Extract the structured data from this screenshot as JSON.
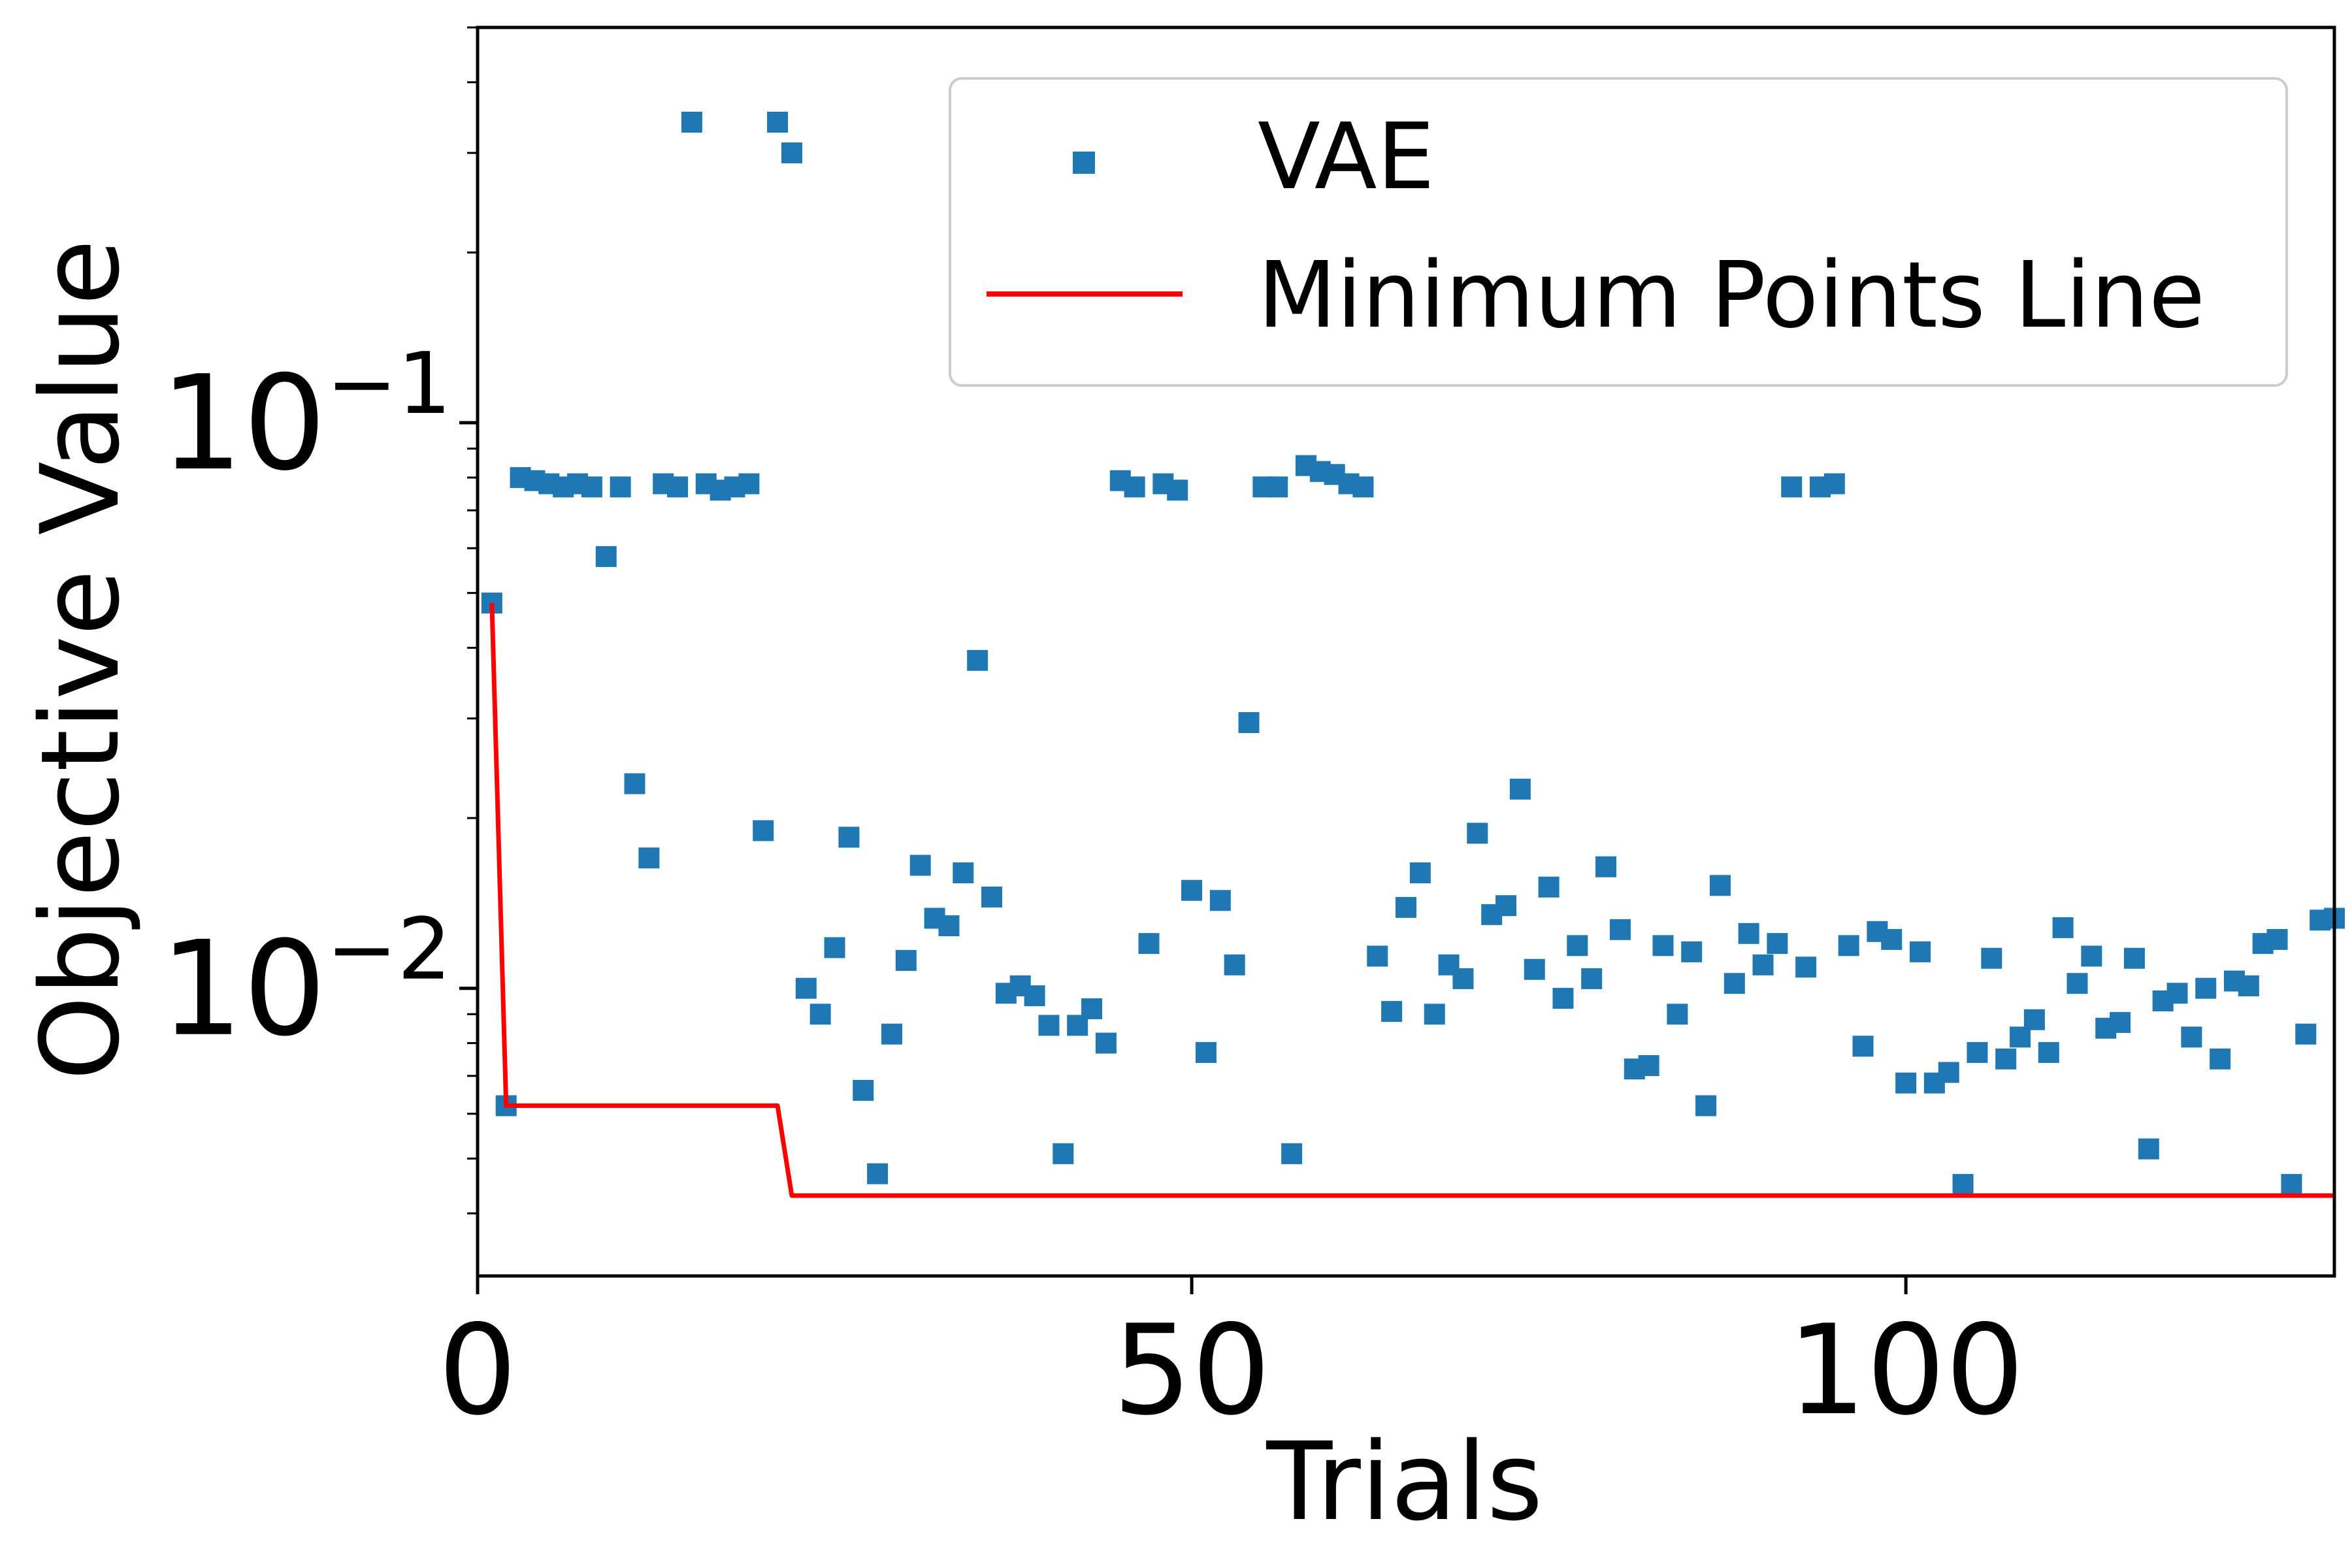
{
  "chart_data": {
    "type": "scatter",
    "xlabel": "Trials",
    "ylabel": "Objective Value",
    "xlim": [
      0,
      130
    ],
    "ylim": [
      0.0031,
      0.5
    ],
    "yscale": "log",
    "x_ticks": [
      0,
      50,
      100
    ],
    "x_tick_labels": [
      "0",
      "50",
      "100"
    ],
    "y_major_ticks": [
      0.01,
      0.1
    ],
    "y_tick_labels": [
      {
        "base": "10",
        "exp": "−2"
      },
      {
        "base": "10",
        "exp": "−1"
      }
    ],
    "legend": {
      "position": "top-right"
    },
    "series": [
      {
        "name": "VAE",
        "kind": "scatter",
        "marker": "square",
        "color": "#1f77b4",
        "x": [
          1,
          2,
          3,
          4,
          5,
          6,
          7,
          8,
          9,
          10,
          11,
          12,
          13,
          14,
          15,
          16,
          17,
          18,
          19,
          20,
          21,
          22,
          23,
          24,
          25,
          26,
          27,
          28,
          29,
          30,
          31,
          32,
          33,
          34,
          35,
          36,
          37,
          38,
          39,
          40,
          41,
          42,
          43,
          44,
          45,
          46,
          47,
          48,
          49,
          50,
          51,
          52,
          53,
          54,
          55,
          56,
          57,
          58,
          59,
          60,
          61,
          62,
          63,
          64,
          65,
          66,
          67,
          68,
          69,
          70,
          71,
          72,
          73,
          74,
          75,
          76,
          77,
          78,
          79,
          80,
          81,
          82,
          83,
          84,
          85,
          86,
          87,
          88,
          89,
          90,
          91,
          92,
          93,
          94,
          95,
          96,
          97,
          98,
          99,
          100,
          101,
          102,
          103,
          104,
          105,
          106,
          107,
          108,
          109,
          110,
          111,
          112,
          113,
          114,
          115,
          116,
          117,
          118,
          119,
          120,
          121,
          122,
          123,
          124,
          125,
          126,
          127,
          128,
          129,
          130
        ],
        "y": [
          0.048,
          0.0062,
          0.08,
          0.079,
          0.078,
          0.077,
          0.078,
          0.077,
          0.058,
          0.077,
          0.023,
          0.017,
          0.078,
          0.077,
          0.34,
          0.078,
          0.076,
          0.077,
          0.078,
          0.019,
          0.34,
          0.3,
          0.01,
          0.009,
          0.0118,
          0.0185,
          0.0066,
          0.0047,
          0.0083,
          0.0112,
          0.0165,
          0.0133,
          0.0129,
          0.016,
          0.038,
          0.0145,
          0.0098,
          0.0101,
          0.0097,
          0.0086,
          0.0051,
          0.0086,
          0.0092,
          0.008,
          0.079,
          0.077,
          0.012,
          0.078,
          0.076,
          0.0149,
          0.0077,
          0.0143,
          0.011,
          0.0295,
          0.077,
          0.077,
          0.0051,
          0.084,
          0.082,
          0.081,
          0.078,
          0.077,
          0.0114,
          0.0091,
          0.0139,
          0.016,
          0.009,
          0.011,
          0.0104,
          0.0188,
          0.0135,
          0.014,
          0.0225,
          0.0108,
          0.0151,
          0.0096,
          0.0119,
          0.0104,
          0.0164,
          0.0127,
          0.0072,
          0.0073,
          0.0119,
          0.009,
          0.0116,
          0.0062,
          0.0152,
          0.0102,
          0.0125,
          0.011,
          0.012,
          0.077,
          0.0109,
          0.077,
          0.078,
          0.0119,
          0.0079,
          0.0126,
          0.0122,
          0.0068,
          0.0116,
          0.0068,
          0.0071,
          0.0045,
          0.0077,
          0.0113,
          0.0075,
          0.0082,
          0.0088,
          0.0077,
          0.0128,
          0.0102,
          0.0114,
          0.0085,
          0.0087,
          0.0113,
          0.0052,
          0.0095,
          0.0098,
          0.0082,
          0.01,
          0.0075,
          0.0103,
          0.0101,
          0.012,
          0.0122,
          0.0045,
          0.0083,
          0.0132,
          0.0133
        ]
      },
      {
        "name": "Minimum Points Line",
        "kind": "line",
        "color": "#ff0000",
        "x": [
          1,
          2,
          21,
          22,
          130
        ],
        "y": [
          0.048,
          0.0062,
          0.0062,
          0.0043,
          0.0043
        ]
      }
    ]
  }
}
